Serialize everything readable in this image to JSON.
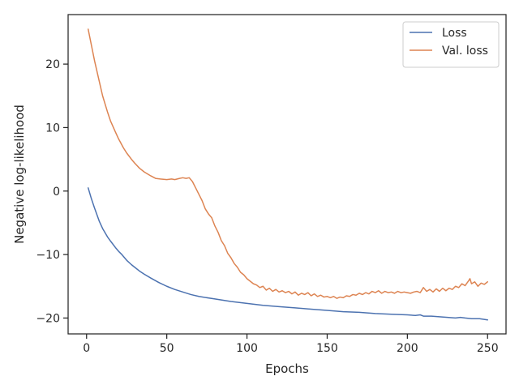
{
  "chart_data": {
    "type": "line",
    "xlabel": "Epochs",
    "ylabel": "Negative log-likelihood",
    "xlim": [
      -11.5,
      261.5
    ],
    "ylim": [
      -22.5,
      27.8
    ],
    "xticks": [
      0,
      50,
      100,
      150,
      200,
      250
    ],
    "yticks": [
      -20,
      -10,
      0,
      10,
      20
    ],
    "grid": false,
    "legend_position": "top-right",
    "series": [
      {
        "name": "Loss",
        "color": "#4c72b0",
        "x": [
          1,
          3,
          5,
          8,
          10,
          13,
          15,
          18,
          20,
          22,
          25,
          28,
          30,
          33,
          36,
          40,
          45,
          50,
          55,
          60,
          65,
          70,
          80,
          90,
          100,
          110,
          120,
          130,
          140,
          150,
          160,
          170,
          180,
          190,
          200,
          205,
          208,
          210,
          215,
          220,
          225,
          230,
          233,
          236,
          240,
          245,
          250
        ],
        "values": [
          0.5,
          -1.2,
          -2.7,
          -4.8,
          -5.9,
          -7.2,
          -7.9,
          -8.9,
          -9.5,
          -10.0,
          -10.9,
          -11.6,
          -12.0,
          -12.6,
          -13.1,
          -13.7,
          -14.4,
          -15.0,
          -15.5,
          -15.9,
          -16.3,
          -16.6,
          -17.0,
          -17.4,
          -17.7,
          -18.0,
          -18.2,
          -18.4,
          -18.6,
          -18.8,
          -19.0,
          -19.1,
          -19.3,
          -19.4,
          -19.5,
          -19.6,
          -19.5,
          -19.7,
          -19.7,
          -19.8,
          -19.9,
          -20.0,
          -19.9,
          -20.0,
          -20.1,
          -20.1,
          -20.3
        ]
      },
      {
        "name": "Val. loss",
        "color": "#dd8452",
        "x": [
          1,
          3,
          5,
          8,
          10,
          13,
          15,
          18,
          20,
          23,
          25,
          28,
          30,
          33,
          36,
          40,
          43,
          46,
          50,
          53,
          55,
          58,
          60,
          62,
          64,
          66,
          68,
          70,
          72,
          74,
          76,
          78,
          80,
          82,
          84,
          86,
          88,
          90,
          92,
          94,
          96,
          98,
          100,
          102,
          104,
          106,
          108,
          110,
          112,
          114,
          116,
          118,
          120,
          122,
          124,
          126,
          128,
          130,
          132,
          134,
          136,
          138,
          140,
          142,
          144,
          146,
          148,
          150,
          152,
          154,
          156,
          158,
          160,
          162,
          164,
          166,
          168,
          170,
          172,
          174,
          176,
          178,
          180,
          182,
          184,
          186,
          188,
          190,
          192,
          194,
          196,
          198,
          200,
          202,
          204,
          206,
          208,
          210,
          212,
          214,
          216,
          218,
          220,
          222,
          224,
          226,
          228,
          230,
          232,
          234,
          236,
          238,
          239,
          240,
          242,
          244,
          246,
          248,
          250
        ],
        "values": [
          25.5,
          23.0,
          20.5,
          17.2,
          15.0,
          12.5,
          11.0,
          9.3,
          8.2,
          6.8,
          6.0,
          5.0,
          4.4,
          3.6,
          3.0,
          2.4,
          2.0,
          1.9,
          1.8,
          1.9,
          1.8,
          2.0,
          2.1,
          2.0,
          2.1,
          1.5,
          0.5,
          -0.5,
          -1.5,
          -2.8,
          -3.6,
          -4.2,
          -5.5,
          -6.5,
          -7.8,
          -8.6,
          -9.8,
          -10.5,
          -11.4,
          -12.0,
          -12.8,
          -13.2,
          -13.8,
          -14.2,
          -14.6,
          -14.8,
          -15.2,
          -15.0,
          -15.6,
          -15.3,
          -15.8,
          -15.5,
          -15.9,
          -15.7,
          -16.0,
          -15.8,
          -16.2,
          -15.9,
          -16.4,
          -16.1,
          -16.3,
          -16.0,
          -16.5,
          -16.2,
          -16.6,
          -16.4,
          -16.7,
          -16.6,
          -16.8,
          -16.6,
          -16.9,
          -16.7,
          -16.8,
          -16.5,
          -16.6,
          -16.3,
          -16.4,
          -16.1,
          -16.3,
          -16.0,
          -16.2,
          -15.8,
          -16.0,
          -15.7,
          -16.1,
          -15.8,
          -16.0,
          -15.9,
          -16.1,
          -15.8,
          -16.0,
          -15.9,
          -16.0,
          -16.1,
          -15.9,
          -15.8,
          -16.0,
          -15.2,
          -15.8,
          -15.5,
          -15.9,
          -15.4,
          -15.8,
          -15.3,
          -15.7,
          -15.3,
          -15.5,
          -15.0,
          -15.2,
          -14.6,
          -14.9,
          -14.2,
          -13.8,
          -14.6,
          -14.3,
          -15.0,
          -14.5,
          -14.7,
          -14.3
        ]
      }
    ]
  }
}
